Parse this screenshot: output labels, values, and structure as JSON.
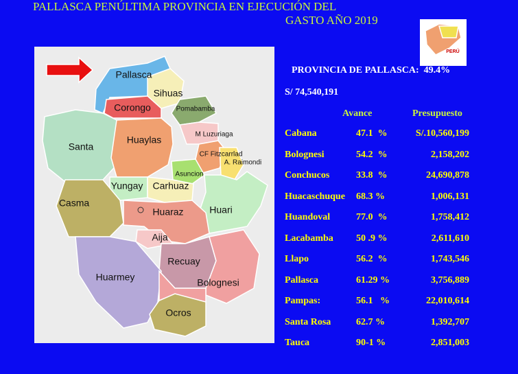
{
  "header": {
    "title_line1": "PALLASCA PENÚLTIMA PROVINCIA EN EJECUCIÓN DEL",
    "title_line2": "GASTO AÑO 2019"
  },
  "logo": {
    "label": "PERÚ"
  },
  "summary": {
    "province": "PROVINCIA DE PALLASCA:  49.4%",
    "budget": "S/ 74,540,191"
  },
  "table": {
    "columns": [
      "Avance",
      "Presupuesto"
    ],
    "rows": [
      [
        "Cabana",
        "47.1  %",
        "S/.10,560,199"
      ],
      [
        "Bolognesi",
        "54.2  %",
        "2,158,202"
      ],
      [
        "Conchucos",
        "33.8  %",
        "24,690,878"
      ],
      [
        "Huacaschuque",
        "68.3 %",
        "1,006,131"
      ],
      [
        "Huandoval",
        "77.0  %",
        "1,758,412"
      ],
      [
        "Lacabamba",
        "50 .9 %",
        "2,611,610"
      ],
      [
        "Llapo",
        "56.2  %",
        "1,743,546"
      ],
      [
        "Pallasca",
        "61.29 %",
        "3,756,889"
      ],
      [
        "Pampas:",
        "56.1   %",
        "22,010,614"
      ],
      [
        "Santa Rosa",
        "62.7 %",
        "1,392,707"
      ],
      [
        "Tauca",
        "90-1 %",
        "2,851,003"
      ]
    ]
  },
  "map": {
    "labels": [
      "Pallasca",
      "Sihuas",
      "Corongo",
      "Pomabamba",
      "Santa",
      "Huaylas",
      "M Luzuriaga",
      "CF Fitzcarrlad",
      "A. Raimondi",
      "Asuncion",
      "Yungay",
      "Carhuaz",
      "Casma",
      "Huari",
      "Huaraz",
      "Aija",
      "Recuay",
      "Huarmey",
      "Bolognesi",
      "Ocros"
    ]
  }
}
